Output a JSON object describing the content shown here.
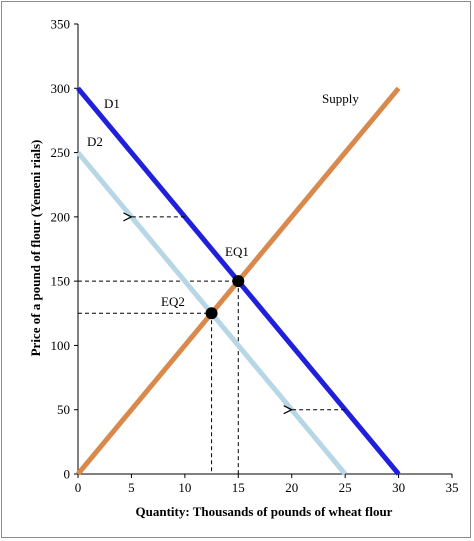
{
  "chart_data": {
    "type": "line",
    "xlabel": "Quantity: Thousands of pounds of wheat flour",
    "ylabel": "Price of a pound of flour (Yemeni rials)",
    "xlim": [
      0,
      35
    ],
    "ylim": [
      0,
      350
    ],
    "x_ticks": [
      "0",
      "5",
      "10",
      "15",
      "20",
      "25",
      "30",
      "35"
    ],
    "y_ticks": [
      "0",
      "50",
      "100",
      "150",
      "200",
      "250",
      "300",
      "350"
    ],
    "grid": false,
    "series": [
      {
        "name": "D1",
        "color": "#1f1fdc",
        "points": [
          [
            0,
            300
          ],
          [
            30,
            0
          ]
        ]
      },
      {
        "name": "D2",
        "color": "#b7d6e6",
        "points": [
          [
            0,
            250
          ],
          [
            25,
            0
          ]
        ]
      },
      {
        "name": "Supply",
        "color": "#d9894b",
        "points": [
          [
            0,
            0
          ],
          [
            30,
            300
          ]
        ]
      }
    ],
    "equilibria": [
      {
        "label": "EQ1",
        "x": 15,
        "y": 150
      },
      {
        "label": "EQ2",
        "x": 12.5,
        "y": 125
      }
    ],
    "shift_arrows": [
      {
        "from": [
          10,
          200
        ],
        "to": [
          5,
          200
        ]
      },
      {
        "from": [
          25,
          50
        ],
        "to": [
          20,
          50
        ]
      }
    ]
  }
}
